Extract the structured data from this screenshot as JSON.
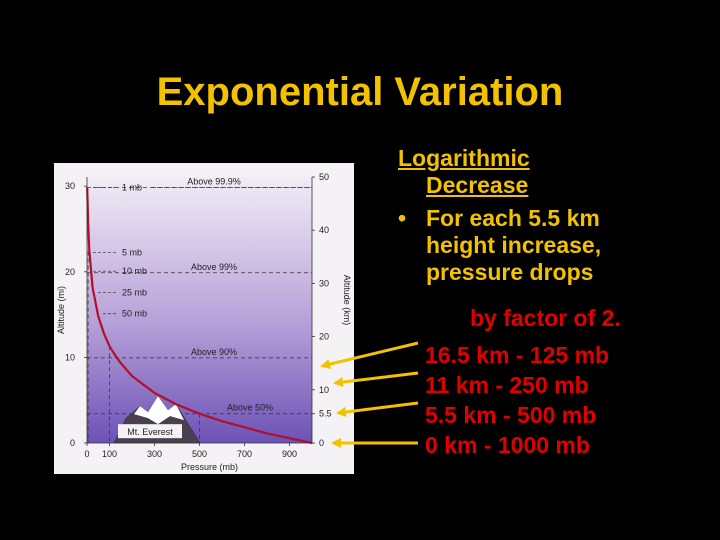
{
  "slide": {
    "title": "Exponential Variation",
    "heading_line1": "Logarithmic",
    "heading_line2": "Decrease",
    "bullet_marker": "•",
    "bullet_line1": "For each 5.5 km",
    "bullet_line2": "height increase,",
    "bullet_line3": "pressure drops",
    "factor_line": "by factor of 2.",
    "results": [
      "16.5 km - 125 mb",
      "11 km - 250 mb",
      "5.5 km - 500 mb",
      "0 km - 1000 mb"
    ]
  },
  "colors": {
    "background": "#000000",
    "title": "#f2c200",
    "highlight": "#e00000",
    "curve": "#b0102a",
    "arrow": "#f2c200"
  },
  "chart_data": {
    "type": "line",
    "xlabel": "Pressure (mb)",
    "ylabel_left": "Altitude (mi)",
    "ylabel_right": "Altitude (km)",
    "xlim": [
      0,
      1000
    ],
    "ylim_km": [
      0,
      50
    ],
    "x_ticks": [
      "0",
      "100",
      "300",
      "500",
      "700",
      "900"
    ],
    "x_tick_values": [
      0,
      100,
      300,
      500,
      700,
      900
    ],
    "left_ticks": [
      "0",
      "10",
      "20",
      "30"
    ],
    "left_tick_values_mi": [
      0,
      10,
      20,
      30
    ],
    "right_ticks": [
      "0",
      "5.5",
      "10",
      "20",
      "30",
      "40",
      "50"
    ],
    "right_tick_values_km": [
      0,
      5.5,
      10,
      20,
      30,
      40,
      50
    ],
    "series": [
      {
        "x": [
          1000,
          800,
          600,
          500,
          400,
          300,
          250,
          200,
          150,
          125,
          100,
          75,
          50,
          25,
          10,
          5,
          1
        ],
        "y": [
          0,
          1.8,
          4.1,
          5.5,
          7.2,
          9.4,
          11,
          12.6,
          15,
          16.5,
          18.2,
          20.6,
          23.8,
          29.2,
          36.2,
          41.5,
          48
        ]
      }
    ],
    "pressure_labels": [
      {
        "label": "1 mb",
        "x": 1,
        "y": 48
      },
      {
        "label": "5 mb",
        "x": 5,
        "y": 35.8
      },
      {
        "label": "10 mb",
        "x": 10,
        "y": 32.3
      },
      {
        "label": "25 mb",
        "x": 25,
        "y": 28.3
      },
      {
        "label": "50 mb",
        "x": 50,
        "y": 24.3
      }
    ],
    "percent_labels": [
      {
        "label": "Above 99.9%",
        "y": 48
      },
      {
        "label": "Above 99%",
        "y": 32
      },
      {
        "label": "Above 90%",
        "y": 16
      },
      {
        "label": "Above 50%",
        "y": 5.5
      }
    ],
    "mountain_label": "Mt. Everest",
    "mountain_height_km": 8.8
  }
}
